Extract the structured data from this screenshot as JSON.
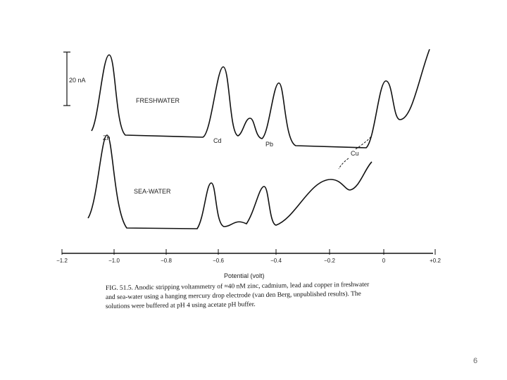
{
  "figure": {
    "scale_bar": "20 nA",
    "traces": [
      "FRESHWATER",
      "SEA-WATER"
    ],
    "peaks": [
      "Zn",
      "Cd",
      "Pb",
      "Cu"
    ],
    "x_ticks": [
      "−1.2",
      "−1.0",
      "−0.8",
      "−0.6",
      "−0.4",
      "−0.2",
      "0",
      "+0.2"
    ],
    "x_label": "Potential (volt)",
    "caption": [
      "FIG. 51.5. Anodic stripping voltammetry of ≈40 nM zinc, cadmium, lead and copper in freshwater",
      "and sea-water using a hanging mercury drop electrode (van den Berg, unpublished results). The",
      "solutions were buffered at pH 4 using acetate pH buffer."
    ]
  },
  "page_number": "6"
}
